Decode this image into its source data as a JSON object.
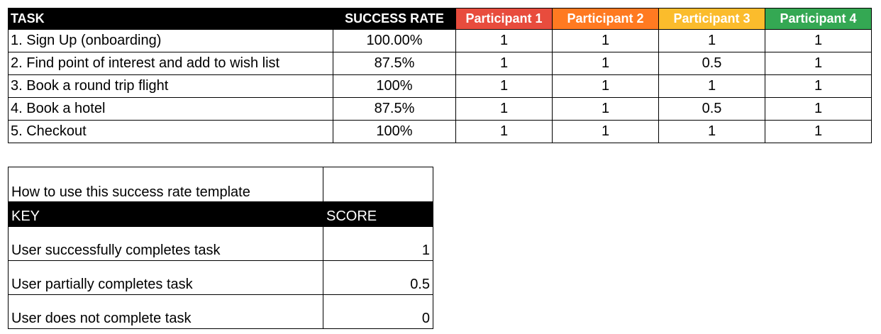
{
  "main_table": {
    "headers": {
      "task": "TASK",
      "success_rate": "SUCCESS RATE",
      "participants": [
        {
          "label": "Participant 1",
          "color": "#e84c3d"
        },
        {
          "label": "Participant 2",
          "color": "#ff7a21"
        },
        {
          "label": "Participant 3",
          "color": "#fbbc2c"
        },
        {
          "label": "Participant 4",
          "color": "#34a853"
        }
      ]
    },
    "rows": [
      {
        "task": "1. Sign Up (onboarding)",
        "rate": "100.00%",
        "scores": [
          "1",
          "1",
          "1",
          "1"
        ]
      },
      {
        "task": "2. Find point of interest and add to wish list",
        "rate": "87.5%",
        "scores": [
          "1",
          "1",
          "0.5",
          "1"
        ]
      },
      {
        "task": "3. Book a round trip flight",
        "rate": "100%",
        "scores": [
          "1",
          "1",
          "1",
          "1"
        ]
      },
      {
        "task": "4. Book a hotel",
        "rate": "87.5%",
        "scores": [
          "1",
          "1",
          "0.5",
          "1"
        ]
      },
      {
        "task": "5. Checkout",
        "rate": "100%",
        "scores": [
          "1",
          "1",
          "1",
          "1"
        ]
      }
    ]
  },
  "key_table": {
    "title": "How to use this success rate template",
    "key_label": "KEY",
    "score_label": "SCORE",
    "rows": [
      {
        "label": "User successfully completes task",
        "score": "1"
      },
      {
        "label": "User partially completes task",
        "score": "0.5"
      },
      {
        "label": "User does not complete task",
        "score": "0"
      }
    ]
  }
}
